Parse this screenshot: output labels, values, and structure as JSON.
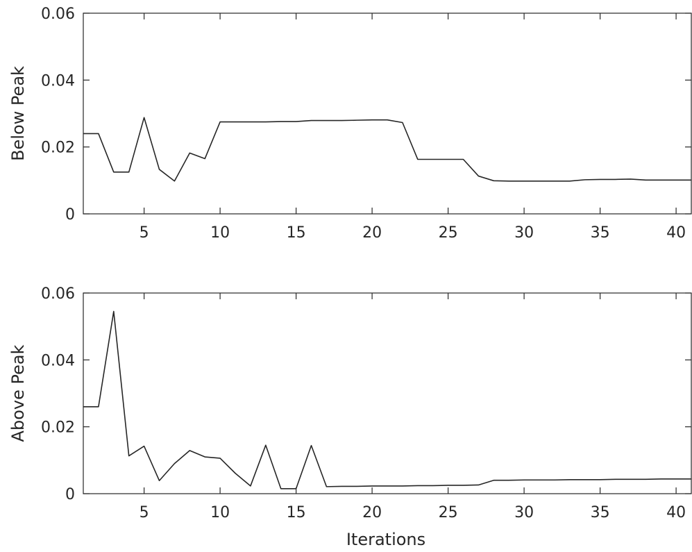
{
  "chart_data": [
    {
      "type": "line",
      "title": "",
      "xlabel": "",
      "ylabel": "Below Peak",
      "xlim": [
        1,
        41
      ],
      "ylim": [
        0,
        0.06
      ],
      "xticks": [
        5,
        10,
        15,
        20,
        25,
        30,
        35,
        40
      ],
      "yticks": [
        0,
        0.02,
        0.04,
        0.06
      ],
      "ytick_labels": [
        "0",
        "0.02",
        "0.04",
        "0.06"
      ],
      "grid": false,
      "line_color": "#262626",
      "x": [
        1,
        2,
        3,
        4,
        5,
        6,
        7,
        8,
        9,
        10,
        11,
        12,
        13,
        14,
        15,
        16,
        17,
        18,
        19,
        20,
        21,
        22,
        23,
        24,
        25,
        26,
        27,
        28,
        29,
        30,
        31,
        32,
        33,
        34,
        35,
        36,
        37,
        38,
        39,
        40,
        41
      ],
      "y": [
        0.024,
        0.024,
        0.0125,
        0.0125,
        0.0288,
        0.0133,
        0.0098,
        0.0182,
        0.0165,
        0.0275,
        0.0275,
        0.0275,
        0.0275,
        0.0276,
        0.0276,
        0.0279,
        0.0279,
        0.0279,
        0.028,
        0.0281,
        0.0281,
        0.0273,
        0.0163,
        0.0163,
        0.0163,
        0.0163,
        0.0113,
        0.0099,
        0.0098,
        0.0098,
        0.0098,
        0.0098,
        0.0098,
        0.0102,
        0.0103,
        0.0103,
        0.0104,
        0.0101,
        0.0101,
        0.0101,
        0.0101
      ]
    },
    {
      "type": "line",
      "title": "",
      "xlabel": "Iterations",
      "ylabel": "Above Peak",
      "xlim": [
        1,
        41
      ],
      "ylim": [
        0,
        0.06
      ],
      "xticks": [
        5,
        10,
        15,
        20,
        25,
        30,
        35,
        40
      ],
      "yticks": [
        0,
        0.02,
        0.04,
        0.06
      ],
      "ytick_labels": [
        "0",
        "0.02",
        "0.04",
        "0.06"
      ],
      "grid": false,
      "line_color": "#262626",
      "x": [
        1,
        2,
        3,
        4,
        5,
        6,
        7,
        8,
        9,
        10,
        11,
        12,
        13,
        14,
        15,
        16,
        17,
        18,
        19,
        20,
        21,
        22,
        23,
        24,
        25,
        26,
        27,
        28,
        29,
        30,
        31,
        32,
        33,
        34,
        35,
        36,
        37,
        38,
        39,
        40,
        41
      ],
      "y": [
        0.026,
        0.026,
        0.0545,
        0.0113,
        0.0142,
        0.0039,
        0.009,
        0.0129,
        0.011,
        0.0106,
        0.0061,
        0.0023,
        0.0145,
        0.0015,
        0.0015,
        0.0144,
        0.0021,
        0.0022,
        0.0022,
        0.0023,
        0.0023,
        0.0023,
        0.0024,
        0.0024,
        0.0025,
        0.0025,
        0.0026,
        0.004,
        0.004,
        0.0041,
        0.0041,
        0.0041,
        0.0042,
        0.0042,
        0.0042,
        0.0043,
        0.0043,
        0.0043,
        0.0044,
        0.0044,
        0.0044
      ]
    }
  ]
}
